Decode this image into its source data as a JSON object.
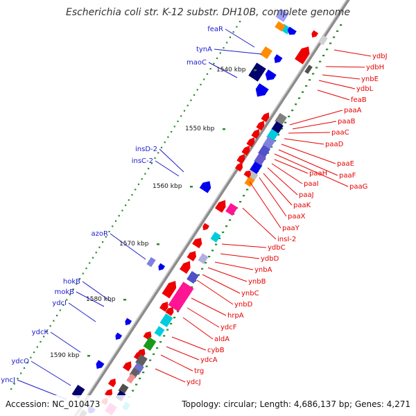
{
  "title": "Escherichia coli str. K-12 substr. DH10B, complete genome",
  "accession": "Accession: NC_010473",
  "topology": "Topology: circular; Length: 4,686,137 bp; Genes: 4,271",
  "colors": {
    "backbone": "#8c8c8c",
    "forward_label": "#1a1acc",
    "reverse_label": "#e60000",
    "forward_gene": "#0000ee",
    "reverse_gene": "#ee0000",
    "gc_skew_dots": "#228b22"
  },
  "kbp_ticks": [
    "1540 kbp",
    "1550 kbp",
    "1560 kbp",
    "1570 kbp",
    "1580 kbp",
    "1590 kbp"
  ],
  "left_genes": [
    "feaR",
    "tynA",
    "maoC",
    "insD-2",
    "insC-2",
    "azoR",
    "hokB",
    "mokB",
    "ydcI",
    "ydcK",
    "ydcO",
    "yncJ"
  ],
  "right_genes": [
    "ydbJ",
    "ydbH",
    "ynbE",
    "ydbL",
    "feaB",
    "paaA",
    "paaB",
    "paaC",
    "paaD",
    "paaE",
    "paaF",
    "paaG",
    "paaH",
    "paaI",
    "paaJ",
    "paaK",
    "paaX",
    "paaY",
    "insI-2",
    "ydbC",
    "ydbD",
    "ynbA",
    "ynbB",
    "ynbC",
    "ynbD",
    "hrpA",
    "ydcF",
    "aldA",
    "cybB",
    "ydcA",
    "trg",
    "ydcJ"
  ]
}
